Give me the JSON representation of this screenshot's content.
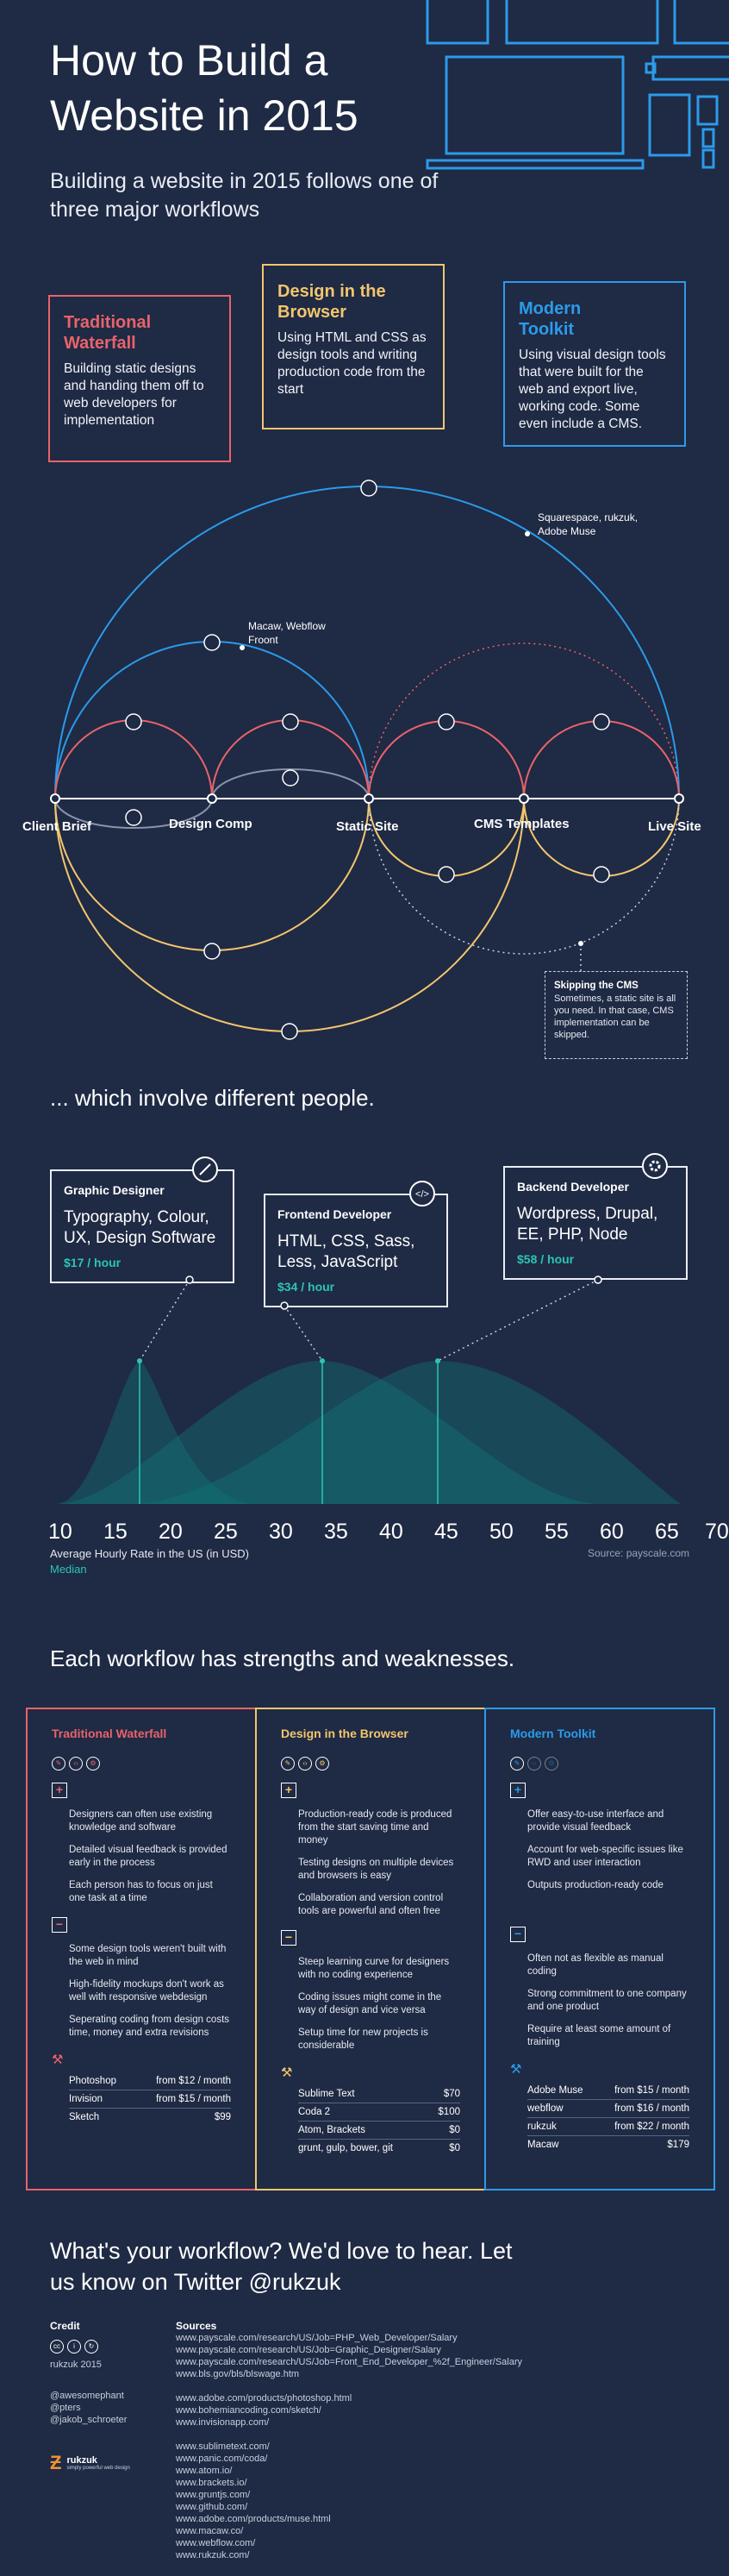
{
  "header": {
    "title": "How to Build a Website in 2015",
    "subtitle": "Building a website in 2015 follows one of three major workflows"
  },
  "workflows": [
    {
      "title": "Traditional Waterfall",
      "desc": "Building static designs and handing them off to web developers for implementation"
    },
    {
      "title": "Design in the Browser",
      "desc": "Using HTML and CSS as design tools and writing production code from the start"
    },
    {
      "title": "Modern Toolkit",
      "desc": "Using visual design tools that were built for the web and export live, working code. Some even include a CMS."
    }
  ],
  "diagram": {
    "stages": [
      "Client Brief",
      "Design Comp",
      "Static Site",
      "CMS Templates",
      "Live Site"
    ],
    "tool_notes": [
      "Squarespace, rukzuk, Adobe Muse",
      "Macaw, Webflow Froont"
    ],
    "skip_title": "Skipping the CMS",
    "skip_desc": "Sometimes, a static site is all you need. In that case, CMS implementation can be skipped."
  },
  "people": {
    "heading": "... which involve different people.",
    "roles": [
      {
        "title": "Graphic Designer",
        "skills": "Typography, Colour, UX, Design Software",
        "rate": "$17 / hour"
      },
      {
        "title": "Frontend Developer",
        "skills": "HTML, CSS, Sass, Less, JavaScript",
        "rate": "$34 / hour"
      },
      {
        "title": "Backend Developer",
        "skills": "Wordpress, Drupal, EE, PHP, Node",
        "rate": "$58 / hour"
      }
    ],
    "axis_ticks": [
      "10",
      "15",
      "20",
      "25",
      "30",
      "35",
      "40",
      "45",
      "50",
      "55",
      "60",
      "65",
      "70"
    ],
    "axis_label": "Average Hourly Rate in the US (in USD)",
    "median_label": "Median",
    "source": "Source: payscale.com"
  },
  "compare": {
    "heading": "Each workflow has strengths and weaknesses.",
    "columns": [
      {
        "title": "Traditional Waterfall",
        "pros": [
          "Designers can often use existing knowledge and software",
          "Detailed visual feedback is provided early in the process",
          "Each person has to focus on just one task at a time"
        ],
        "cons": [
          "Some design tools weren't built with the web in mind",
          "High-fidelity mockups don't work as well with responsive webdesign",
          "Seperating coding from design costs time, money and extra revisions"
        ],
        "tools": [
          {
            "name": "Photoshop",
            "price": "from $12 / month"
          },
          {
            "name": "Invision",
            "price": "from $15 / month"
          },
          {
            "name": "Sketch",
            "price": "$99"
          }
        ]
      },
      {
        "title": "Design in the Browser",
        "pros": [
          "Production-ready code is produced from the start saving time and money",
          "Testing designs on multiple devices and browsers is easy",
          "Collaboration and version control tools are powerful and often free"
        ],
        "cons": [
          "Steep learning curve for designers with no coding experience",
          "Coding issues might come in the way of design and vice versa",
          "Setup time for new projects is considerable"
        ],
        "tools": [
          {
            "name": "Sublime Text",
            "price": "$70"
          },
          {
            "name": "Coda 2",
            "price": "$100"
          },
          {
            "name": "Atom, Brackets",
            "price": "$0"
          },
          {
            "name": "grunt, gulp, bower, git",
            "price": "$0"
          }
        ]
      },
      {
        "title": "Modern Toolkit",
        "pros": [
          "Offer easy-to-use interface and provide visual feedback",
          "Account for web-specific issues like RWD and user interaction",
          "Outputs production-ready code"
        ],
        "cons": [
          "Often not as flexible as manual coding",
          "Strong commitment to one company and one product",
          "Require at least some amount of training"
        ],
        "tools": [
          {
            "name": "Adobe Muse",
            "price": "from $15 / month"
          },
          {
            "name": "webflow",
            "price": "from $16 / month"
          },
          {
            "name": "rukzuk",
            "price": "from $22 / month"
          },
          {
            "name": "Macaw",
            "price": "$179"
          }
        ]
      }
    ]
  },
  "footer": {
    "cta": "What's your workflow? We'd love to hear. Let us know on Twitter @rukzuk",
    "credit_title": "Credit",
    "credit_year": "rukzuk 2015",
    "credit_people": [
      "@awesomephant",
      "@pters",
      "@jakob_schroeter"
    ],
    "brand": "rukzuk",
    "brand_tag": "simply powerful web design",
    "sources_title": "Sources",
    "sources_a": [
      "www.payscale.com/research/US/Job=PHP_Web_Developer/Salary",
      "www.payscale.com/research/US/Job=Graphic_Designer/Salary",
      "www.payscale.com/research/US/Job=Front_End_Developer_%2f_Engineer/Salary",
      "www.bls.gov/bls/blswage.htm"
    ],
    "sources_b": [
      "www.adobe.com/products/photoshop.html",
      "www.bohemiancoding.com/sketch/",
      "www.invisionapp.com/"
    ],
    "sources_c": [
      "www.sublimetext.com/",
      "www.panic.com/coda/",
      "www.atom.io/",
      "www.brackets.io/",
      "www.gruntjs.com/",
      "www.github.com/",
      "www.adobe.com/products/muse.html",
      "www.macaw.co/",
      "www.webflow.com/",
      "www.rukzuk.com/"
    ]
  },
  "colors": {
    "bg": "#1f2a44",
    "waterfall": "#e8636a",
    "browser": "#f2c66d",
    "toolkit": "#2b9bea",
    "median": "#2cc5b5"
  }
}
